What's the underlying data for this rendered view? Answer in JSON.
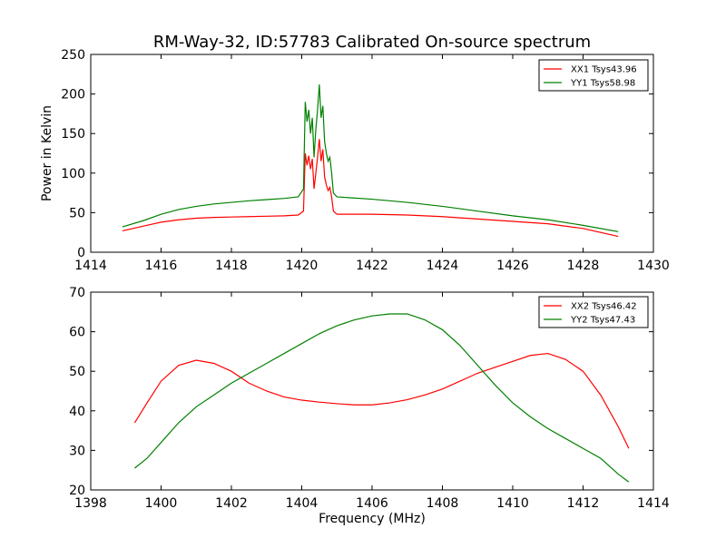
{
  "chart_data": [
    {
      "type": "line",
      "title": "RM-Way-32, ID:57783 Calibrated On-source spectrum",
      "xlabel": "",
      "ylabel": "Power in Kelvin",
      "xlim": [
        1414,
        1430
      ],
      "ylim": [
        0,
        250
      ],
      "xticks": [
        1414,
        1416,
        1418,
        1420,
        1422,
        1424,
        1426,
        1428,
        1430
      ],
      "yticks": [
        0,
        50,
        100,
        150,
        200,
        250
      ],
      "grid": false,
      "legend_position": "top-right",
      "series": [
        {
          "name": "XX1 Tsys43.96",
          "color": "#ff0000",
          "points": [
            [
              1414.9,
              27
            ],
            [
              1415.5,
              33
            ],
            [
              1416,
              38
            ],
            [
              1416.5,
              41
            ],
            [
              1417,
              43
            ],
            [
              1417.5,
              44
            ],
            [
              1418,
              44.5
            ],
            [
              1418.5,
              45
            ],
            [
              1419,
              45.5
            ],
            [
              1419.5,
              46
            ],
            [
              1419.9,
              47
            ],
            [
              1420.05,
              52
            ],
            [
              1420.1,
              125
            ],
            [
              1420.15,
              110
            ],
            [
              1420.2,
              122
            ],
            [
              1420.25,
              105
            ],
            [
              1420.3,
              118
            ],
            [
              1420.35,
              80
            ],
            [
              1420.4,
              100
            ],
            [
              1420.45,
              120
            ],
            [
              1420.5,
              143
            ],
            [
              1420.55,
              115
            ],
            [
              1420.6,
              130
            ],
            [
              1420.65,
              95
            ],
            [
              1420.7,
              85
            ],
            [
              1420.75,
              78
            ],
            [
              1420.8,
              82
            ],
            [
              1420.85,
              70
            ],
            [
              1420.9,
              52
            ],
            [
              1421,
              48
            ],
            [
              1422,
              48
            ],
            [
              1423,
              47
            ],
            [
              1424,
              45
            ],
            [
              1425,
              42
            ],
            [
              1426,
              39
            ],
            [
              1427,
              36
            ],
            [
              1428,
              30
            ],
            [
              1429,
              20
            ]
          ]
        },
        {
          "name": "YY1 Tsys58.98",
          "color": "#008000",
          "points": [
            [
              1414.9,
              32
            ],
            [
              1415.5,
              40
            ],
            [
              1416,
              48
            ],
            [
              1416.5,
              54
            ],
            [
              1417,
              58
            ],
            [
              1417.5,
              61
            ],
            [
              1418,
              63
            ],
            [
              1418.5,
              65
            ],
            [
              1419,
              66.5
            ],
            [
              1419.5,
              68
            ],
            [
              1419.9,
              70
            ],
            [
              1420.05,
              80
            ],
            [
              1420.1,
              190
            ],
            [
              1420.15,
              165
            ],
            [
              1420.2,
              180
            ],
            [
              1420.25,
              150
            ],
            [
              1420.3,
              170
            ],
            [
              1420.35,
              120
            ],
            [
              1420.4,
              155
            ],
            [
              1420.45,
              180
            ],
            [
              1420.5,
              212
            ],
            [
              1420.55,
              170
            ],
            [
              1420.6,
              185
            ],
            [
              1420.65,
              140
            ],
            [
              1420.7,
              125
            ],
            [
              1420.75,
              115
            ],
            [
              1420.8,
              120
            ],
            [
              1420.85,
              100
            ],
            [
              1420.9,
              75
            ],
            [
              1421,
              70
            ],
            [
              1422,
              67
            ],
            [
              1423,
              63
            ],
            [
              1424,
              58
            ],
            [
              1425,
              52
            ],
            [
              1426,
              46
            ],
            [
              1427,
              41
            ],
            [
              1428,
              34
            ],
            [
              1429,
              26
            ]
          ]
        }
      ]
    },
    {
      "type": "line",
      "title": "",
      "xlabel": "Frequency (MHz)",
      "ylabel": "",
      "xlim": [
        1398,
        1414
      ],
      "ylim": [
        20,
        70
      ],
      "xticks": [
        1398,
        1400,
        1402,
        1404,
        1406,
        1408,
        1410,
        1412,
        1414
      ],
      "yticks": [
        20,
        30,
        40,
        50,
        60,
        70
      ],
      "grid": false,
      "legend_position": "top-right",
      "series": [
        {
          "name": "XX2 Tsys46.42",
          "color": "#ff0000",
          "points": [
            [
              1399.25,
              37
            ],
            [
              1399.6,
              42
            ],
            [
              1400,
              47.5
            ],
            [
              1400.5,
              51.5
            ],
            [
              1401,
              52.8
            ],
            [
              1401.5,
              52
            ],
            [
              1402,
              50
            ],
            [
              1402.5,
              47
            ],
            [
              1403,
              45
            ],
            [
              1403.5,
              43.5
            ],
            [
              1404,
              42.7
            ],
            [
              1404.5,
              42.2
            ],
            [
              1405,
              41.8
            ],
            [
              1405.5,
              41.5
            ],
            [
              1406,
              41.5
            ],
            [
              1406.5,
              42
            ],
            [
              1407,
              42.8
            ],
            [
              1407.5,
              44
            ],
            [
              1408,
              45.5
            ],
            [
              1408.5,
              47.5
            ],
            [
              1409,
              49.5
            ],
            [
              1409.5,
              51
            ],
            [
              1410,
              52.5
            ],
            [
              1410.5,
              54
            ],
            [
              1411,
              54.5
            ],
            [
              1411.5,
              53
            ],
            [
              1412,
              50
            ],
            [
              1412.5,
              44
            ],
            [
              1413,
              36
            ],
            [
              1413.3,
              30.5
            ]
          ]
        },
        {
          "name": "YY2 Tsys47.43",
          "color": "#008000",
          "points": [
            [
              1399.25,
              25.5
            ],
            [
              1399.6,
              28
            ],
            [
              1400,
              32
            ],
            [
              1400.5,
              37
            ],
            [
              1401,
              41
            ],
            [
              1401.5,
              44
            ],
            [
              1402,
              47
            ],
            [
              1402.5,
              49.5
            ],
            [
              1403,
              52
            ],
            [
              1403.5,
              54.5
            ],
            [
              1404,
              57
            ],
            [
              1404.5,
              59.5
            ],
            [
              1405,
              61.5
            ],
            [
              1405.5,
              63
            ],
            [
              1406,
              64
            ],
            [
              1406.5,
              64.5
            ],
            [
              1407,
              64.5
            ],
            [
              1407.5,
              63
            ],
            [
              1408,
              60.5
            ],
            [
              1408.5,
              56.5
            ],
            [
              1409,
              51.5
            ],
            [
              1409.5,
              46.5
            ],
            [
              1410,
              42
            ],
            [
              1410.5,
              38.5
            ],
            [
              1411,
              35.5
            ],
            [
              1411.5,
              33
            ],
            [
              1412,
              30.5
            ],
            [
              1412.5,
              28
            ],
            [
              1413,
              24
            ],
            [
              1413.3,
              22
            ]
          ]
        }
      ]
    }
  ]
}
